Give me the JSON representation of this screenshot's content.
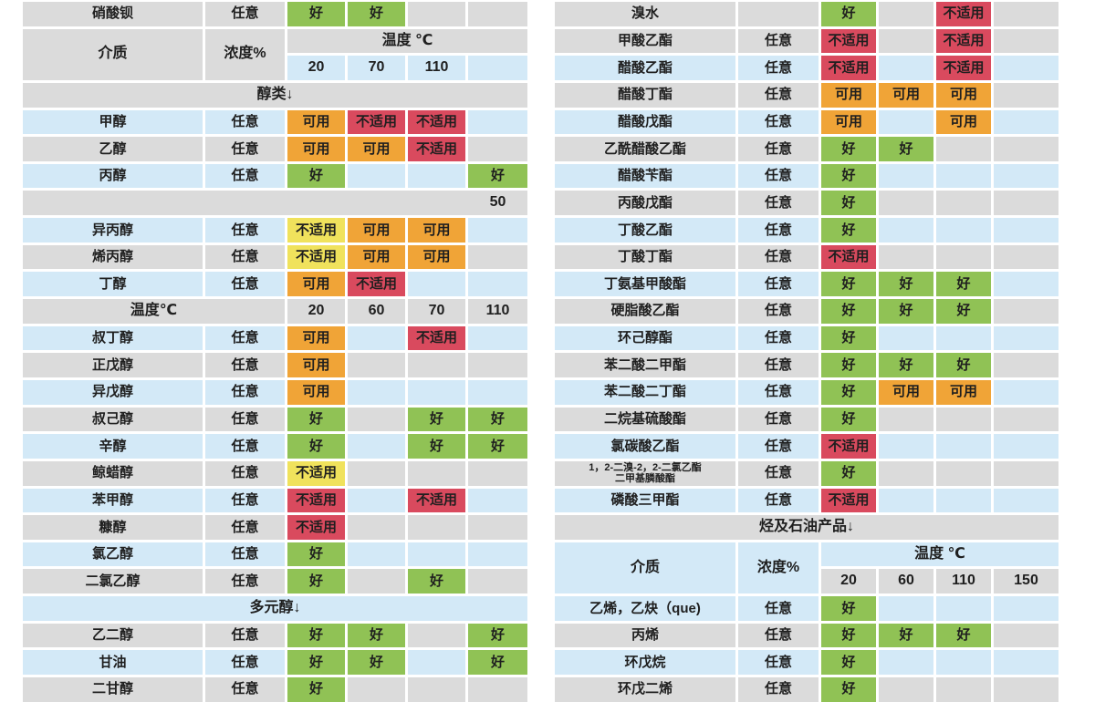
{
  "legend": {
    "good": "好",
    "usable": "可用",
    "unsuitable": "不适用",
    "any": "任意"
  },
  "header_labels": {
    "medium": "介质",
    "concentration": "浓度%"
  },
  "colors": {
    "good": "#90c255",
    "usable": "#f0a437",
    "unsuitable": "#d94a5e",
    "unsuitable_mild": "#f0e25c",
    "row_gray": "#dbdbdb",
    "row_blue": "#d3e9f7",
    "text": "#1f1f1f"
  },
  "left_table": {
    "rows": [
      {
        "type": "row",
        "name": "硝酸钡",
        "conc": "any",
        "temps": [
          "good",
          "good",
          "",
          ""
        ],
        "bg": "gray"
      },
      {
        "type": "header",
        "temp_label": "温度 ℃",
        "temps": [
          "20",
          "70",
          "110",
          ""
        ],
        "bg": "gray",
        "num_bg": "blue"
      },
      {
        "type": "section",
        "label": "醇类↓",
        "bg": "gray"
      },
      {
        "type": "row",
        "name": "甲醇",
        "conc": "any",
        "temps": [
          "usable",
          "unsuitable",
          "unsuitable",
          ""
        ],
        "bg": "blue"
      },
      {
        "type": "row",
        "name": "乙醇",
        "conc": "any",
        "temps": [
          "usable",
          "usable",
          "unsuitable",
          ""
        ],
        "bg": "gray"
      },
      {
        "type": "row",
        "name": "丙醇",
        "conc": "any",
        "temps": [
          "good",
          "",
          "",
          "good"
        ],
        "bg": "blue"
      },
      {
        "type": "bar",
        "label": "50",
        "bg": "gray"
      },
      {
        "type": "row",
        "name": "异丙醇",
        "conc": "any",
        "temps": [
          "unsuitable_mild",
          "usable",
          "usable",
          ""
        ],
        "bg": "blue"
      },
      {
        "type": "row",
        "name": "烯丙醇",
        "conc": "any",
        "temps": [
          "unsuitable_mild",
          "usable",
          "usable",
          ""
        ],
        "bg": "gray"
      },
      {
        "type": "row",
        "name": "丁醇",
        "conc": "any",
        "temps": [
          "usable",
          "unsuitable",
          "",
          ""
        ],
        "bg": "blue"
      },
      {
        "type": "midheader",
        "temp_label": "温度℃",
        "temps": [
          "20",
          "60",
          "70",
          "110"
        ],
        "bg": "gray"
      },
      {
        "type": "row",
        "name": "叔丁醇",
        "conc": "any",
        "temps": [
          "usable",
          "",
          "unsuitable",
          ""
        ],
        "bg": "blue"
      },
      {
        "type": "row",
        "name": "正戊醇",
        "conc": "any",
        "temps": [
          "usable",
          "",
          "",
          ""
        ],
        "bg": "gray"
      },
      {
        "type": "row",
        "name": "异戊醇",
        "conc": "any",
        "temps": [
          "usable",
          "",
          "",
          ""
        ],
        "bg": "blue"
      },
      {
        "type": "row",
        "name": "叔己醇",
        "conc": "any",
        "temps": [
          "good",
          "",
          "good",
          "good"
        ],
        "bg": "gray"
      },
      {
        "type": "row",
        "name": "辛醇",
        "conc": "any",
        "temps": [
          "good",
          "",
          "good",
          "good"
        ],
        "bg": "blue"
      },
      {
        "type": "row",
        "name": "鲸蜡醇",
        "conc": "any",
        "temps": [
          "unsuitable_mild",
          "",
          "",
          ""
        ],
        "bg": "gray"
      },
      {
        "type": "row",
        "name": "苯甲醇",
        "conc": "any",
        "temps": [
          "unsuitable",
          "",
          "unsuitable",
          ""
        ],
        "bg": "blue"
      },
      {
        "type": "row",
        "name": "糠醇",
        "conc": "any",
        "temps": [
          "unsuitable",
          "",
          "",
          ""
        ],
        "bg": "gray"
      },
      {
        "type": "row",
        "name": "氯乙醇",
        "conc": "any",
        "temps": [
          "good",
          "",
          "",
          ""
        ],
        "bg": "blue"
      },
      {
        "type": "row",
        "name": "二氯乙醇",
        "conc": "any",
        "temps": [
          "good",
          "",
          "good",
          ""
        ],
        "bg": "gray"
      },
      {
        "type": "section",
        "label": "多元醇↓",
        "bg": "blue"
      },
      {
        "type": "row",
        "name": "乙二醇",
        "conc": "any",
        "temps": [
          "good",
          "good",
          "",
          "good"
        ],
        "bg": "gray"
      },
      {
        "type": "row",
        "name": "甘油",
        "conc": "any",
        "temps": [
          "good",
          "good",
          "",
          "good"
        ],
        "bg": "blue"
      },
      {
        "type": "row",
        "name": "二甘醇",
        "conc": "any",
        "temps": [
          "good",
          "",
          "",
          ""
        ],
        "bg": "gray"
      }
    ]
  },
  "right_table": {
    "rows": [
      {
        "type": "row",
        "name": "溴水",
        "conc": "",
        "temps": [
          "good",
          "",
          "unsuitable",
          ""
        ],
        "bg": "gray"
      },
      {
        "type": "row",
        "name": "甲酸乙酯",
        "conc": "any",
        "temps": [
          "unsuitable",
          "",
          "unsuitable",
          ""
        ],
        "bg": "gray"
      },
      {
        "type": "row",
        "name": "醋酸乙酯",
        "conc": "any",
        "temps": [
          "unsuitable",
          "",
          "unsuitable",
          ""
        ],
        "bg": "blue"
      },
      {
        "type": "row",
        "name": "醋酸丁酯",
        "conc": "any",
        "temps": [
          "usable",
          "usable",
          "usable",
          ""
        ],
        "bg": "gray"
      },
      {
        "type": "row",
        "name": "醋酸戊酯",
        "conc": "any",
        "temps": [
          "usable",
          "",
          "usable",
          ""
        ],
        "bg": "blue"
      },
      {
        "type": "row",
        "name": "乙酰醋酸乙酯",
        "conc": "any",
        "temps": [
          "good",
          "good",
          "",
          ""
        ],
        "bg": "gray"
      },
      {
        "type": "row",
        "name": "醋酸苄酯",
        "conc": "any",
        "temps": [
          "good",
          "",
          "",
          ""
        ],
        "bg": "blue"
      },
      {
        "type": "row",
        "name": "丙酸戊酯",
        "conc": "any",
        "temps": [
          "good",
          "",
          "",
          ""
        ],
        "bg": "gray"
      },
      {
        "type": "row",
        "name": "丁酸乙酯",
        "conc": "any",
        "temps": [
          "good",
          "",
          "",
          ""
        ],
        "bg": "blue"
      },
      {
        "type": "row",
        "name": "丁酸丁酯",
        "conc": "any",
        "temps": [
          "unsuitable",
          "",
          "",
          ""
        ],
        "bg": "gray"
      },
      {
        "type": "row",
        "name": "丁氨基甲酸酯",
        "conc": "any",
        "temps": [
          "good",
          "good",
          "good",
          ""
        ],
        "bg": "blue"
      },
      {
        "type": "row",
        "name": "硬脂酸乙酯",
        "conc": "any",
        "temps": [
          "good",
          "good",
          "good",
          ""
        ],
        "bg": "gray"
      },
      {
        "type": "row",
        "name": "环己醇酯",
        "conc": "any",
        "temps": [
          "good",
          "",
          "",
          ""
        ],
        "bg": "blue"
      },
      {
        "type": "row",
        "name": "苯二酸二甲酯",
        "conc": "any",
        "temps": [
          "good",
          "good",
          "good",
          ""
        ],
        "bg": "gray"
      },
      {
        "type": "row",
        "name": "苯二酸二丁酯",
        "conc": "any",
        "temps": [
          "good",
          "usable",
          "usable",
          ""
        ],
        "bg": "blue"
      },
      {
        "type": "row",
        "name": "二烷基硫酸酯",
        "conc": "any",
        "temps": [
          "good",
          "",
          "",
          ""
        ],
        "bg": "gray"
      },
      {
        "type": "row",
        "name": "氯碳酸乙酯",
        "conc": "any",
        "temps": [
          "unsuitable",
          "",
          "",
          ""
        ],
        "bg": "blue"
      },
      {
        "type": "row",
        "name": "1，2-二溴-2，2-二氯乙酯\n二甲基膦酸酯",
        "small": true,
        "conc": "any",
        "temps": [
          "good",
          "",
          "",
          ""
        ],
        "bg": "gray"
      },
      {
        "type": "row",
        "name": "磷酸三甲酯",
        "conc": "any",
        "temps": [
          "unsuitable",
          "",
          "",
          ""
        ],
        "bg": "blue"
      },
      {
        "type": "section",
        "label": "烃及石油产品↓",
        "bg": "gray"
      },
      {
        "type": "header",
        "temp_label": "温度 ℃",
        "temps": [
          "20",
          "60",
          "110",
          "150"
        ],
        "bg": "blue",
        "num_bg": "gray"
      },
      {
        "type": "row",
        "name": "乙烯，乙炔（que)",
        "conc": "any",
        "temps": [
          "good",
          "",
          "",
          ""
        ],
        "bg": "blue"
      },
      {
        "type": "row",
        "name": "丙烯",
        "conc": "any",
        "temps": [
          "good",
          "good",
          "good",
          ""
        ],
        "bg": "gray"
      },
      {
        "type": "row",
        "name": "环戊烷",
        "conc": "any",
        "temps": [
          "good",
          "",
          "",
          ""
        ],
        "bg": "blue"
      },
      {
        "type": "row",
        "name": "环戊二烯",
        "conc": "any",
        "temps": [
          "good",
          "",
          "",
          ""
        ],
        "bg": "gray"
      }
    ]
  }
}
